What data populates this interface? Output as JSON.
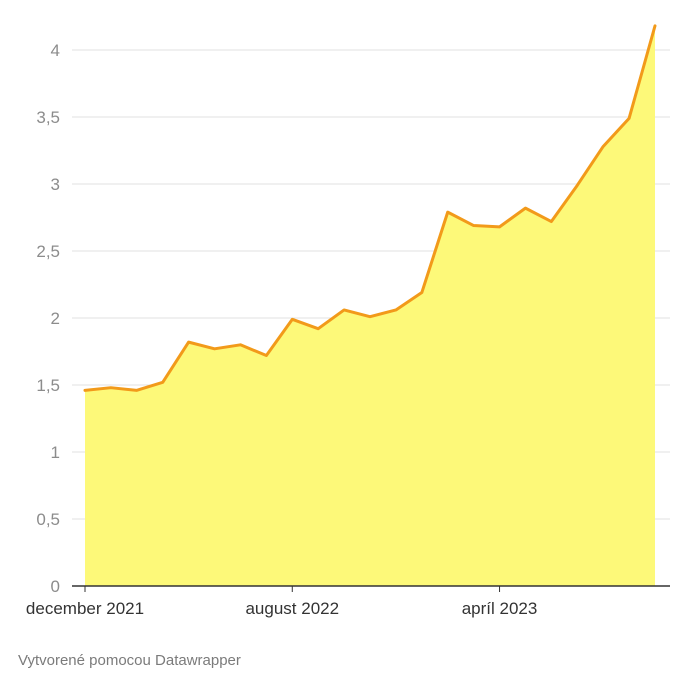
{
  "chart_data": {
    "type": "area",
    "title": "",
    "xlabel": "",
    "ylabel": "",
    "ylim": [
      0,
      4.25
    ],
    "grid": true,
    "y_ticks": [
      {
        "value": 0,
        "label": "0"
      },
      {
        "value": 0.5,
        "label": "0,5"
      },
      {
        "value": 1,
        "label": "1"
      },
      {
        "value": 1.5,
        "label": "1,5"
      },
      {
        "value": 2,
        "label": "2"
      },
      {
        "value": 2.5,
        "label": "2,5"
      },
      {
        "value": 3,
        "label": "3"
      },
      {
        "value": 3.5,
        "label": "3,5"
      },
      {
        "value": 4,
        "label": "4"
      }
    ],
    "x_ticks": [
      {
        "value": "2021-12",
        "label": "december 2021"
      },
      {
        "value": "2022-08",
        "label": "august 2022"
      },
      {
        "value": "2023-04",
        "label": "apríl 2023"
      }
    ],
    "x": [
      "2021-12",
      "2022-01",
      "2022-02",
      "2022-03",
      "2022-04",
      "2022-05",
      "2022-06",
      "2022-07",
      "2022-08",
      "2022-09",
      "2022-10",
      "2022-11",
      "2022-12",
      "2023-01",
      "2023-02",
      "2023-03",
      "2023-04",
      "2023-05",
      "2023-06",
      "2023-07",
      "2023-08",
      "2023-09",
      "2023-10"
    ],
    "values": [
      1.46,
      1.48,
      1.46,
      1.52,
      1.82,
      1.77,
      1.8,
      1.72,
      1.99,
      1.92,
      2.06,
      2.01,
      2.06,
      2.19,
      2.79,
      2.69,
      2.68,
      2.82,
      2.72,
      2.99,
      3.28,
      3.49,
      4.18
    ],
    "colors": {
      "line": "#f29a1a",
      "area": "#fdf979",
      "grid": "#e1e1e1",
      "axis": "#333333"
    }
  },
  "footer": {
    "credit": "Vytvorené pomocou Datawrapper"
  }
}
